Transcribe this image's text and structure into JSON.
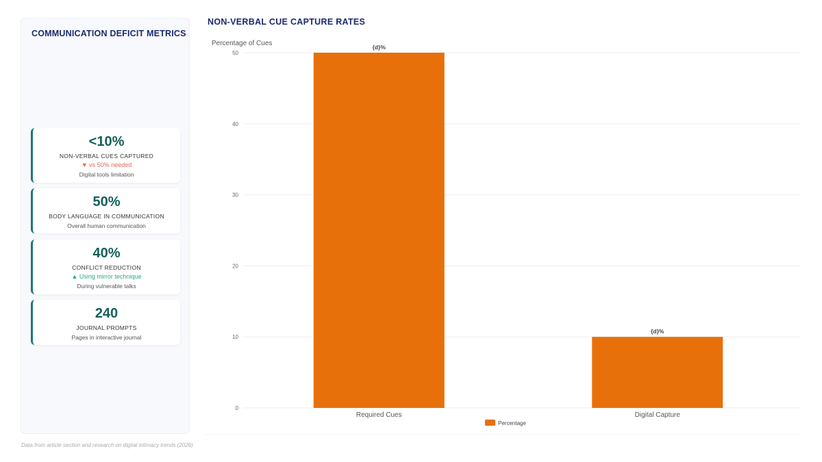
{
  "sidebar": {
    "title": "COMMUNICATION DEFICIT METRICS",
    "cards": [
      {
        "value": "<10%",
        "label": "NON-VERBAL CUES CAPTURED",
        "trend": "▼ vs 50% needed",
        "trend_dir": "down",
        "sub": "Digital tools limitation"
      },
      {
        "value": "50%",
        "label": "BODY LANGUAGE IN COMMUNICATION",
        "sub": "Overall human communication"
      },
      {
        "value": "40%",
        "label": "CONFLICT REDUCTION",
        "trend": "▲ Using mirror technique",
        "trend_dir": "up",
        "sub": "During vulnerable talks"
      },
      {
        "value": "240",
        "label": "JOURNAL PROMPTS",
        "sub": "Pages in interactive journal"
      }
    ]
  },
  "chart_title": "NON-VERBAL CUE CAPTURE RATES",
  "chart_data": {
    "type": "bar",
    "categories": [
      "Required Cues",
      "Digital Capture"
    ],
    "series": [
      {
        "name": "Percentage",
        "values": [
          50,
          10
        ],
        "color": "#e8700a"
      }
    ],
    "data_labels": [
      "{d}%",
      "{d}%"
    ],
    "ylabel": "Percentage of Cues",
    "ylim": [
      0,
      50
    ],
    "yticks": [
      0,
      10,
      20,
      30,
      40,
      50
    ],
    "grid": true,
    "legend": "bottom-center"
  },
  "footnote": "Data from article section and research on digital intimacy trends (2026)"
}
